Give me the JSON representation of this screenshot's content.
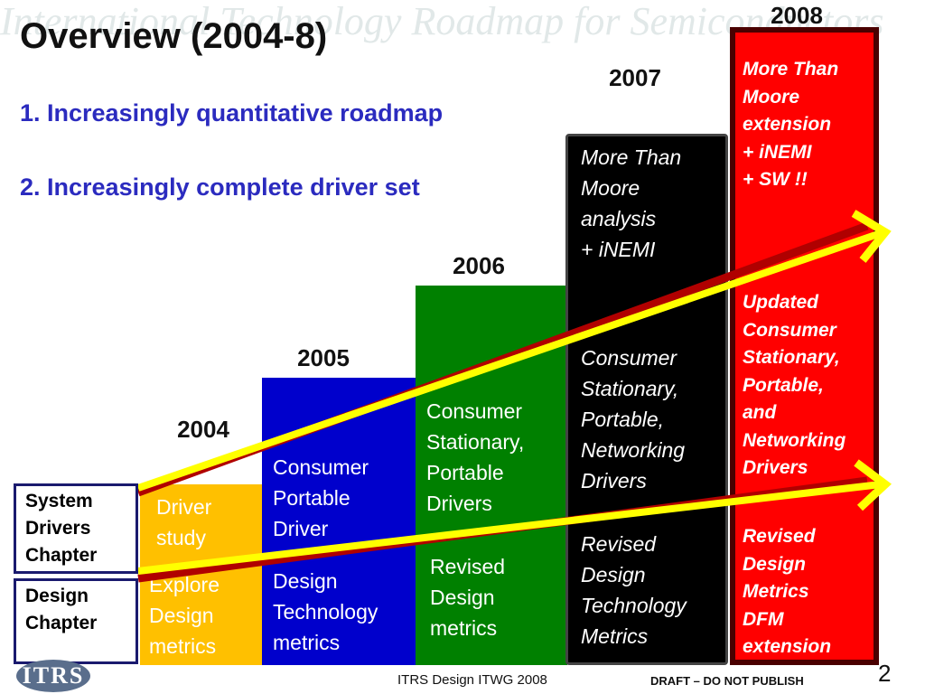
{
  "title": "Overview (2004-8)",
  "points": [
    "1. Increasingly quantitative roadmap",
    "2. Increasingly complete driver set"
  ],
  "years": {
    "y2004": "2004",
    "y2005": "2005",
    "y2006": "2006",
    "y2007": "2007",
    "y2008": "2008"
  },
  "steps": {
    "s2004": {
      "top": [
        "Driver",
        "study"
      ],
      "bottom": [
        "Explore",
        "Design",
        "metrics"
      ],
      "color": "#ffc000"
    },
    "s2005": {
      "top": [
        "Consumer",
        "Portable",
        "Driver"
      ],
      "bottom": [
        "Design",
        "Technology",
        "metrics"
      ],
      "color": "#0000cc"
    },
    "s2006": {
      "top": [
        "Consumer",
        "Stationary,",
        "Portable",
        "Drivers"
      ],
      "bottom": [
        "Revised",
        "Design",
        "metrics"
      ],
      "color": "#008000"
    },
    "s2007": {
      "top": [
        "More Than",
        "Moore",
        "analysis",
        "+ iNEMI"
      ],
      "middle": [
        "Consumer",
        "Stationary,",
        "Portable,",
        "Networking",
        "Drivers"
      ],
      "bottom": [
        "Revised",
        "Design",
        "Technology",
        "Metrics"
      ],
      "color": "#000000"
    },
    "s2008": {
      "top": [
        "More Than",
        "Moore",
        "extension",
        "+ iNEMI",
        "+ SW !!"
      ],
      "middle": [
        "Updated",
        "Consumer",
        "Stationary,",
        "Portable,",
        "and",
        "Networking",
        "Drivers"
      ],
      "bottom": [
        "Revised",
        "Design",
        "Metrics",
        "DFM",
        "extension"
      ],
      "color": "#ff0000"
    }
  },
  "chapters": {
    "system": [
      "System",
      "Drivers",
      "Chapter"
    ],
    "design": [
      "Design",
      "Chapter"
    ]
  },
  "footer": {
    "center": "ITRS Design ITWG 2008",
    "draft": "DRAFT – DO NOT PUBLISH",
    "page": "2",
    "logo": "ITRS"
  },
  "background_logo": "International Technology Roadmap for Semiconductors"
}
